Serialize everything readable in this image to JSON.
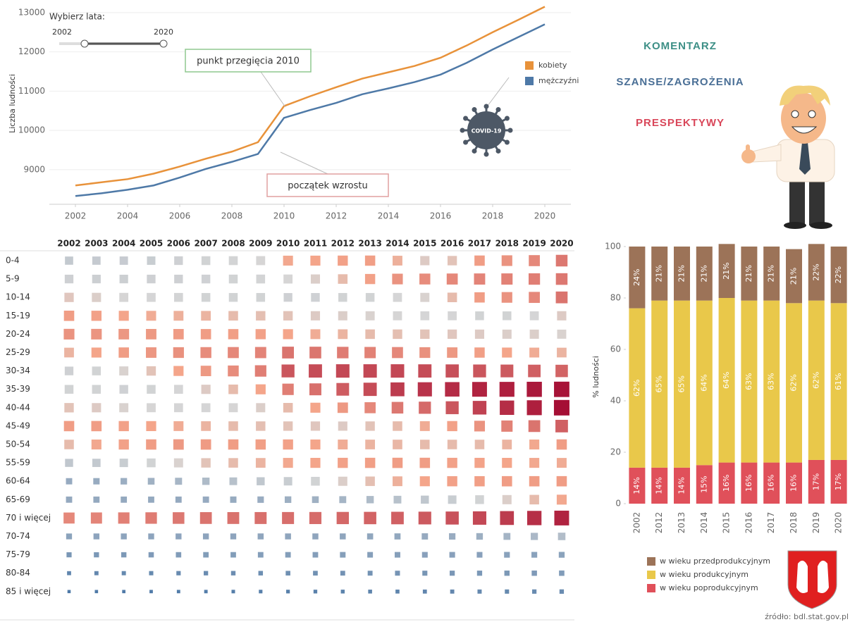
{
  "chart_data": [
    {
      "type": "line",
      "y_label": "Liczba ludności",
      "x": [
        2002,
        2003,
        2004,
        2005,
        2006,
        2007,
        2008,
        2009,
        2010,
        2011,
        2012,
        2013,
        2014,
        2015,
        2016,
        2017,
        2018,
        2019,
        2020
      ],
      "series": [
        {
          "name": "kobiety",
          "color": "#e8923a",
          "values": [
            8600,
            8680,
            8760,
            8900,
            9080,
            9280,
            9460,
            9700,
            10620,
            10870,
            11100,
            11320,
            11480,
            11640,
            11850,
            12160,
            12500,
            12820,
            13150
          ]
        },
        {
          "name": "mężczyźni",
          "color": "#4e79a7",
          "values": [
            8330,
            8400,
            8490,
            8600,
            8800,
            9020,
            9200,
            9400,
            10320,
            10520,
            10700,
            10920,
            11070,
            11230,
            11420,
            11720,
            12060,
            12380,
            12700
          ]
        }
      ],
      "xlim": [
        2001,
        2021
      ],
      "xticks": [
        2002,
        2004,
        2006,
        2008,
        2010,
        2012,
        2014,
        2016,
        2018,
        2020
      ],
      "ylim": [
        8120,
        13230
      ],
      "yticks": [
        9000,
        10000,
        11000,
        12000,
        13000
      ],
      "grid": true,
      "legend": "right",
      "annotations": [
        "punkt przegięcia 2010",
        "początek wzrostu"
      ]
    },
    {
      "type": "heatmap",
      "categories": [
        2002,
        2003,
        2004,
        2005,
        2006,
        2007,
        2008,
        2009,
        2010,
        2011,
        2012,
        2013,
        2014,
        2015,
        2016,
        2017,
        2018,
        2019,
        2020
      ],
      "rows": [
        "0-4",
        "5-9",
        "10-14",
        "15-19",
        "20-24",
        "25-29",
        "30-34",
        "35-39",
        "40-44",
        "45-49",
        "50-54",
        "55-59",
        "60-64",
        "65-69",
        "70 i więcej",
        "70-74",
        "75-79",
        "80-84",
        "85 i więcej"
      ],
      "colors": [
        "#4e79a7",
        "#d6d6d6",
        "#f4a58a",
        "#a50f35"
      ],
      "values": [
        [
          820,
          830,
          840,
          850,
          880,
          900,
          910,
          930,
          1050,
          1060,
          1080,
          1090,
          1030,
          960,
          980,
          1100,
          1150,
          1200,
          1280
        ],
        [
          880,
          870,
          870,
          880,
          880,
          890,
          900,
          910,
          930,
          950,
          1000,
          1080,
          1150,
          1180,
          1200,
          1220,
          1230,
          1250,
          1280
        ],
        [
          970,
          950,
          930,
          920,
          910,
          900,
          900,
          900,
          880,
          890,
          900,
          900,
          920,
          940,
          1000,
          1100,
          1150,
          1200,
          1300
        ],
        [
          1100,
          1080,
          1060,
          1040,
          1030,
          1020,
          1000,
          990,
          980,
          960,
          950,
          940,
          930,
          920,
          920,
          900,
          900,
          920,
          960
        ],
        [
          1150,
          1140,
          1130,
          1120,
          1110,
          1100,
          1090,
          1080,
          1060,
          1040,
          1020,
          1000,
          990,
          980,
          970,
          960,
          950,
          950,
          940
        ],
        [
          1020,
          1060,
          1100,
          1130,
          1160,
          1180,
          1200,
          1220,
          1300,
          1290,
          1260,
          1230,
          1200,
          1160,
          1120,
          1090,
          1060,
          1040,
          1020
        ],
        [
          880,
          900,
          940,
          980,
          1060,
          1120,
          1180,
          1250,
          1450,
          1500,
          1520,
          1520,
          1520,
          1500,
          1480,
          1450,
          1430,
          1400,
          1380
        ],
        [
          900,
          900,
          890,
          900,
          920,
          960,
          1000,
          1060,
          1250,
          1320,
          1420,
          1500,
          1580,
          1620,
          1660,
          1700,
          1720,
          1750,
          1780
        ],
        [
          980,
          960,
          940,
          930,
          920,
          920,
          930,
          950,
          1000,
          1060,
          1120,
          1200,
          1280,
          1350,
          1450,
          1550,
          1650,
          1720,
          1800
        ],
        [
          1100,
          1100,
          1080,
          1060,
          1040,
          1020,
          1000,
          990,
          980,
          970,
          960,
          980,
          1000,
          1040,
          1080,
          1150,
          1230,
          1300,
          1400
        ],
        [
          1000,
          1050,
          1080,
          1100,
          1120,
          1110,
          1100,
          1090,
          1080,
          1060,
          1040,
          1020,
          1010,
          1000,
          1000,
          1000,
          1020,
          1050,
          1100
        ],
        [
          800,
          820,
          850,
          900,
          940,
          980,
          1000,
          1020,
          1050,
          1060,
          1080,
          1090,
          1100,
          1100,
          1080,
          1070,
          1060,
          1050,
          1040
        ],
        [
          560,
          570,
          590,
          620,
          660,
          700,
          750,
          800,
          850,
          900,
          950,
          990,
          1030,
          1060,
          1080,
          1090,
          1100,
          1100,
          1100
        ],
        [
          550,
          550,
          550,
          550,
          550,
          560,
          570,
          580,
          600,
          620,
          650,
          700,
          750,
          800,
          850,
          900,
          950,
          1000,
          1050
        ],
        [
          1200,
          1220,
          1240,
          1260,
          1280,
          1300,
          1310,
          1320,
          1330,
          1340,
          1360,
          1380,
          1400,
          1430,
          1470,
          1520,
          1580,
          1640,
          1700
        ],
        [
          500,
          510,
          510,
          510,
          510,
          510,
          510,
          520,
          520,
          520,
          520,
          530,
          540,
          560,
          580,
          600,
          640,
          680,
          720
        ],
        [
          400,
          410,
          420,
          430,
          440,
          450,
          450,
          460,
          460,
          460,
          470,
          470,
          470,
          480,
          480,
          480,
          490,
          490,
          500
        ],
        [
          260,
          270,
          280,
          290,
          300,
          310,
          320,
          330,
          340,
          350,
          360,
          370,
          380,
          390,
          400,
          410,
          420,
          430,
          440
        ],
        [
          150,
          155,
          160,
          170,
          175,
          180,
          190,
          200,
          210,
          220,
          230,
          240,
          250,
          260,
          270,
          280,
          290,
          300,
          310
        ]
      ]
    },
    {
      "type": "stacked_bar",
      "y_label": "% ludności",
      "categories": [
        2002,
        2012,
        2013,
        2014,
        2015,
        2016,
        2017,
        2018,
        2019,
        2020
      ],
      "series": [
        {
          "name": "w wieku przedprodukcyjnym",
          "color": "#9c7358",
          "values": [
            24,
            21,
            21,
            21,
            21,
            21,
            21,
            21,
            22,
            22
          ],
          "value_labels": [
            "24%",
            "21%",
            "21%",
            "21%",
            "21%",
            "21%",
            "21%",
            "21%",
            "22%",
            "22%"
          ]
        },
        {
          "name": "w wieku produkcyjnym",
          "color": "#e9c84a",
          "values": [
            62,
            65,
            65,
            64,
            64,
            63,
            63,
            62,
            62,
            61
          ],
          "value_labels": [
            "62%",
            "65%",
            "65%",
            "64%",
            "64%",
            "63%",
            "63%",
            "62%",
            "62%",
            "61%"
          ]
        },
        {
          "name": "w wieku poprodukcyjnym",
          "color": "#e0505a",
          "values": [
            14,
            14,
            14,
            15,
            16,
            16,
            16,
            16,
            17,
            17
          ],
          "value_labels": [
            "14%",
            "14%",
            "14%",
            "15%",
            "16%",
            "16%",
            "16%",
            "16%",
            "17%",
            "17%"
          ]
        }
      ],
      "ylim": [
        0,
        100
      ],
      "yticks": [
        0,
        20,
        40,
        60,
        80,
        100
      ],
      "legend": "bottom"
    }
  ],
  "slider": {
    "label": "Wybierz lata:",
    "range": [
      2002,
      2020
    ]
  },
  "icon_label": "COVID-19",
  "commentary": [
    {
      "text": "KOMENTARZ",
      "color": "#3d8f86"
    },
    {
      "text": "SZANSE/ZAGROŻENIA",
      "color": "#4a6f96"
    },
    {
      "text": "PRESPEKTYWY",
      "color": "#d9475a"
    }
  ],
  "source": "źródło: bdl.stat.gov.pl"
}
